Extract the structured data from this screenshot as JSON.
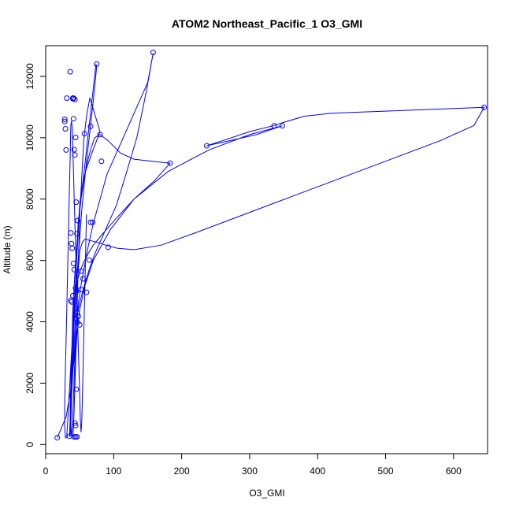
{
  "chart_data": {
    "type": "line",
    "title": "ATOM2 Northeast_Pacific_1 O3_GMI",
    "xlabel": "O3_GMI",
    "ylabel": "Altitude (m)",
    "xlim": [
      0,
      650
    ],
    "ylim": [
      -300,
      13000
    ],
    "xticks": [
      0,
      100,
      200,
      300,
      400,
      500,
      600
    ],
    "yticks": [
      0,
      2000,
      4000,
      6000,
      8000,
      10000,
      12000
    ],
    "grid": false,
    "legend": "none",
    "color": "#0000ff",
    "series": [
      {
        "x": [
          17,
          30,
          37,
          42,
          44,
          46,
          51,
          57,
          64,
          72,
          82,
          92,
          104,
          118,
          134,
          148,
          158,
          150,
          120,
          90,
          70,
          62,
          57,
          52,
          48,
          46,
          44,
          43,
          42,
          41,
          40,
          39,
          38,
          37,
          36,
          37,
          38,
          39,
          40,
          42,
          44,
          47,
          50,
          54,
          58,
          62,
          66,
          70,
          74,
          75,
          70,
          64,
          58,
          53,
          49,
          45,
          42,
          40,
          38,
          36,
          35,
          36,
          38,
          40,
          42,
          44,
          46,
          48,
          52,
          56,
          60,
          66,
          72,
          80,
          92,
          110,
          130,
          150,
          170,
          183,
          160,
          130,
          105,
          85,
          70,
          62,
          55,
          50,
          46,
          44,
          42,
          41,
          40,
          39,
          38,
          37,
          36,
          36,
          37,
          38,
          40,
          42,
          44,
          46,
          48,
          50,
          54,
          58,
          65,
          75,
          88,
          105,
          130,
          170,
          220,
          280,
          340,
          400,
          460,
          520,
          580,
          630,
          645,
          600,
          540,
          480,
          420,
          380,
          350,
          336,
          300,
          260,
          237,
          270,
          310,
          348,
          300,
          240,
          180,
          130,
          95,
          70,
          58,
          50,
          46,
          44,
          43,
          42,
          41,
          40,
          40,
          41,
          42,
          43,
          44,
          45,
          46,
          47,
          48,
          49,
          50,
          52,
          54,
          56,
          60,
          65,
          80,
          68,
          60,
          55,
          52,
          50,
          49,
          48,
          47,
          46,
          45,
          44,
          43,
          42,
          41,
          40,
          39,
          38,
          37,
          36,
          35,
          34,
          33,
          32,
          31,
          30,
          29,
          28,
          28,
          29,
          30,
          31,
          32,
          33,
          34,
          35,
          36,
          37,
          38,
          39,
          40,
          41,
          42,
          43,
          44,
          45,
          46,
          47,
          48,
          49,
          50,
          51,
          52,
          53,
          54,
          55,
          56,
          57,
          58,
          59,
          60
        ],
        "y": [
          220,
          900,
          1800,
          2800,
          3600,
          4200,
          4700,
          5200,
          5700,
          6200,
          6700,
          7200,
          7800,
          8800,
          10000,
          11500,
          12750,
          11800,
          10300,
          8800,
          7200,
          6400,
          5800,
          5200,
          4600,
          4000,
          3400,
          2800,
          2200,
          1600,
          1000,
          500,
          270,
          600,
          1300,
          2000,
          2800,
          3600,
          4400,
          5200,
          6000,
          6800,
          7600,
          8400,
          9200,
          10000,
          10800,
          11600,
          12400,
          12300,
          11200,
          10000,
          8800,
          7600,
          6400,
          5200,
          4000,
          2800,
          1600,
          700,
          260,
          800,
          1800,
          3000,
          4200,
          5400,
          6500,
          7300,
          8000,
          8600,
          9100,
          9600,
          10000,
          10100,
          9900,
          9500,
          9300,
          9250,
          9200,
          9170,
          8600,
          8000,
          7400,
          6900,
          6500,
          6200,
          5900,
          5600,
          5300,
          5000,
          4700,
          4300,
          3800,
          3200,
          2500,
          1700,
          900,
          250,
          700,
          1500,
          2400,
          3300,
          4200,
          5000,
          5700,
          6300,
          6600,
          6700,
          6650,
          6600,
          6500,
          6400,
          6350,
          6500,
          6900,
          7400,
          7900,
          8400,
          8900,
          9400,
          9900,
          10400,
          10990,
          10950,
          10900,
          10850,
          10800,
          10700,
          10500,
          10400,
          10200,
          9900,
          9740,
          9900,
          10100,
          10390,
          10100,
          9600,
          8900,
          8000,
          7000,
          6000,
          5200,
          4400,
          3600,
          2800,
          2000,
          1200,
          600,
          240,
          250,
          600,
          1200,
          1900,
          2700,
          3500,
          4300,
          5100,
          5900,
          6700,
          7500,
          8300,
          9100,
          9900,
          10700,
          11300,
          10200,
          9500,
          9000,
          8600,
          8200,
          7800,
          7400,
          7000,
          6600,
          6200,
          5800,
          5400,
          5000,
          4600,
          4200,
          3800,
          3400,
          3000,
          2600,
          2200,
          1800,
          1400,
          1000,
          600,
          300,
          210,
          230,
          600,
          1400,
          2400,
          3400,
          4400,
          5400,
          6400,
          7400,
          8400,
          9400,
          10400,
          10550,
          10300,
          9600,
          8800,
          8000,
          7200,
          6400,
          5600,
          4800,
          4000,
          3200,
          2400,
          1600,
          800,
          400,
          700,
          1500,
          2500,
          3500,
          4500,
          5500,
          6500,
          7500
        ]
      }
    ],
    "markers": {
      "x": [
        17,
        35,
        36,
        37,
        38,
        39,
        40,
        41,
        42,
        43,
        44,
        45,
        46,
        47,
        48,
        50,
        52,
        55,
        57,
        60,
        64,
        66,
        69,
        75,
        80,
        82,
        92,
        158,
        183,
        237,
        336,
        348,
        645,
        28,
        28,
        29,
        30,
        31,
        40,
        41,
        43,
        44,
        45,
        52,
        40,
        38,
        37,
        42,
        44,
        46,
        43,
        44,
        45,
        47,
        46,
        44,
        42,
        41,
        66
      ],
      "y": [
        220,
        270,
        12150,
        6900,
        6550,
        6400,
        11270,
        10620,
        9610,
        9440,
        10010,
        7900,
        6870,
        7300,
        4180,
        3900,
        5650,
        5400,
        10130,
        4960,
        6010,
        10370,
        7240,
        12400,
        10100,
        9230,
        6430,
        12780,
        9170,
        9740,
        10390,
        10390,
        10990,
        10530,
        10600,
        10290,
        9600,
        11290,
        11290,
        11290,
        11250,
        5100,
        4990,
        5050,
        4850,
        4650,
        4700,
        250,
        250,
        250,
        700,
        620,
        1800,
        3980,
        4300,
        4100,
        5700,
        5900,
        7240
      ]
    }
  }
}
